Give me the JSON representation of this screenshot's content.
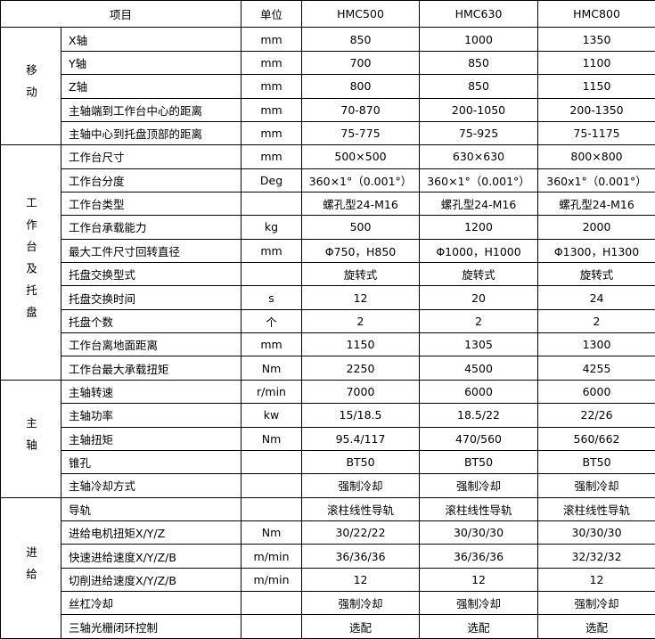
{
  "header": {
    "item": "项目",
    "unit": "单位",
    "models": [
      "HMC500",
      "HMC630",
      "HMC800"
    ]
  },
  "groups": [
    {
      "name": "移动",
      "rows": [
        [
          "X轴",
          "mm",
          "850",
          "1000",
          "1350"
        ],
        [
          "Y轴",
          "mm",
          "700",
          "850",
          "1100"
        ],
        [
          "Z轴",
          "mm",
          "800",
          "850",
          "1150"
        ],
        [
          "主轴端到工作台中心的距离",
          "mm",
          "70-870",
          "200-1050",
          "200-1350"
        ],
        [
          "主轴中心到托盘顶部的距离",
          "mm",
          "75-775",
          "75-925",
          "75-1175"
        ]
      ]
    },
    {
      "name": "工作台及托盘",
      "rows": [
        [
          "工作台尺寸",
          "mm",
          "500×500",
          "630×630",
          "800×800"
        ],
        [
          "工作台分度",
          "Deg",
          "360×1°（0.001°）",
          "360×1°（0.001°）",
          "360x1°（0.001°）"
        ],
        [
          "工作台类型",
          null,
          "螺孔型24-M16",
          "螺孔型24-M16",
          "螺孔型24-M16"
        ],
        [
          "工作台承载能力",
          "kg",
          "500",
          "1200",
          "2000"
        ],
        [
          "最大工件尺寸回转直径",
          "mm",
          "Φ750，H850",
          "Φ1000，H1000",
          "Φ1300，H1300"
        ],
        [
          "托盘交换型式",
          null,
          "旋转式",
          "旋转式",
          "旋转式"
        ],
        [
          "托盘交换时间",
          "s",
          "12",
          "20",
          "24"
        ],
        [
          "托盘个数",
          "个",
          "2",
          "2",
          "2"
        ],
        [
          "工作台离地面距离",
          "mm",
          "1150",
          "1305",
          "1300"
        ],
        [
          "工作台最大承载扭矩",
          "Nm",
          "2250",
          "4500",
          "4255"
        ]
      ]
    },
    {
      "name": "主轴",
      "rows": [
        [
          "主轴转速",
          "r/min",
          "7000",
          "6000",
          "6000"
        ],
        [
          "主轴功率",
          "kw",
          "15/18.5",
          "18.5/22",
          "22/26"
        ],
        [
          "主轴扭矩",
          "Nm",
          "95.4/117",
          "470/560",
          "560/662"
        ],
        [
          "锥孔",
          null,
          "BT50",
          "BT50",
          "BT50"
        ],
        [
          "主轴冷却方式",
          null,
          "强制冷却",
          "强制冷却",
          "强制冷却"
        ]
      ]
    },
    {
      "name": "进给",
      "rows": [
        [
          "导轨",
          null,
          "滚柱线性导轨",
          "滚柱线性导轨",
          "滚柱线性导轨"
        ],
        [
          "进给电机扭矩X/Y/Z",
          "Nm",
          "30/22/22",
          "30/30/30",
          "30/30/30"
        ],
        [
          "快速进给速度X/Y/Z/B",
          "m/min",
          "36/36/36",
          "36/36/36",
          "32/32/32"
        ],
        [
          "切削进给速度X/Y/Z/B",
          "m/min",
          "12",
          "12",
          "12"
        ],
        [
          "丝杠冷却",
          null,
          "强制冷却",
          "强制冷却",
          "强制冷却"
        ],
        [
          "三轴光栅闭环控制",
          null,
          "选配",
          "选配",
          "选配"
        ]
      ]
    }
  ]
}
